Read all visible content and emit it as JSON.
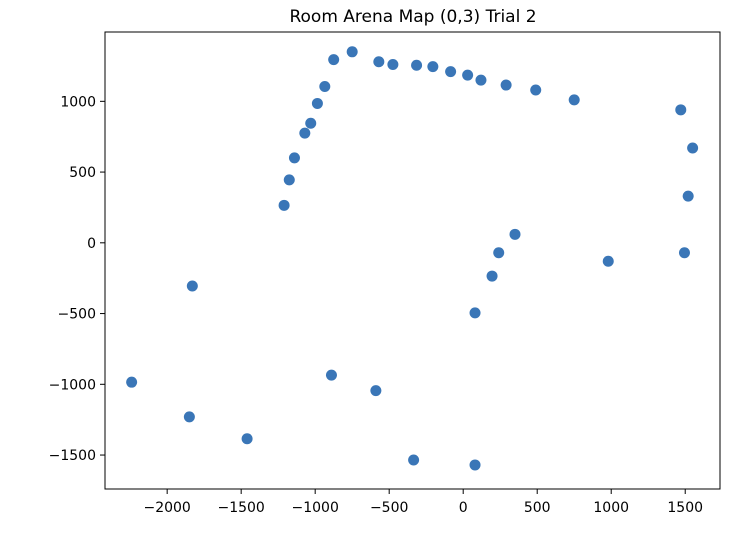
{
  "chart_data": {
    "type": "scatter",
    "title": "Room Arena Map (0,3) Trial 2",
    "xlabel": "",
    "ylabel": "",
    "xlim": [
      -2420,
      1735
    ],
    "ylim": [
      -1740,
      1490
    ],
    "xticks": [
      -2000,
      -1500,
      -1000,
      -500,
      0,
      500,
      1000,
      1500
    ],
    "xtick_labels": [
      "−2000",
      "−1500",
      "−1000",
      "−500",
      "0",
      "500",
      "1000",
      "1500"
    ],
    "yticks": [
      -1500,
      -1000,
      -500,
      0,
      500,
      1000
    ],
    "ytick_labels": [
      "−1500",
      "−1000",
      "−500",
      "0",
      "500",
      "1000"
    ],
    "grid": false,
    "marker_color": "#3a76b7",
    "points": [
      {
        "x": -2240,
        "y": -985
      },
      {
        "x": -1830,
        "y": -305
      },
      {
        "x": -1850,
        "y": -1230
      },
      {
        "x": -1460,
        "y": -1385
      },
      {
        "x": -1210,
        "y": 265
      },
      {
        "x": -1175,
        "y": 445
      },
      {
        "x": -1140,
        "y": 600
      },
      {
        "x": -1070,
        "y": 775
      },
      {
        "x": -1030,
        "y": 845
      },
      {
        "x": -985,
        "y": 985
      },
      {
        "x": -935,
        "y": 1105
      },
      {
        "x": -875,
        "y": 1295
      },
      {
        "x": -750,
        "y": 1350
      },
      {
        "x": -890,
        "y": -935
      },
      {
        "x": -590,
        "y": -1045
      },
      {
        "x": -570,
        "y": 1280
      },
      {
        "x": -475,
        "y": 1260
      },
      {
        "x": -315,
        "y": 1255
      },
      {
        "x": -205,
        "y": 1245
      },
      {
        "x": -85,
        "y": 1210
      },
      {
        "x": 30,
        "y": 1185
      },
      {
        "x": 120,
        "y": 1150
      },
      {
        "x": 290,
        "y": 1115
      },
      {
        "x": 490,
        "y": 1080
      },
      {
        "x": 750,
        "y": 1010
      },
      {
        "x": -335,
        "y": -1535
      },
      {
        "x": 80,
        "y": -1570
      },
      {
        "x": 80,
        "y": -495
      },
      {
        "x": 195,
        "y": -235
      },
      {
        "x": 240,
        "y": -70
      },
      {
        "x": 350,
        "y": 60
      },
      {
        "x": 980,
        "y": -130
      },
      {
        "x": 1470,
        "y": 940
      },
      {
        "x": 1550,
        "y": 670
      },
      {
        "x": 1520,
        "y": 330
      },
      {
        "x": 1495,
        "y": -70
      }
    ]
  }
}
